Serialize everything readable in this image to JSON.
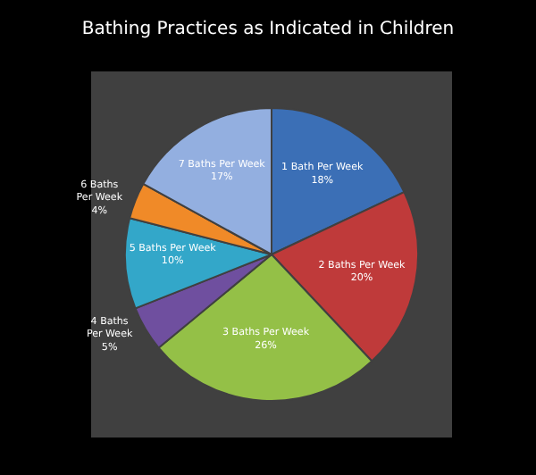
{
  "chart_data": {
    "type": "pie",
    "title": "Bathing Practices as Indicated in Children",
    "categories": [
      "1 Bath Per Week",
      "2 Baths Per Week",
      "3 Baths Per Week",
      "4 Baths Per Week",
      "5 Baths Per Week",
      "6 Baths Per Week",
      "7 Baths Per Week"
    ],
    "values": [
      18,
      20,
      26,
      5,
      10,
      4,
      17
    ],
    "value_labels": [
      "18%",
      "20%",
      "26%",
      "5%",
      "10%",
      "4%",
      "17%"
    ],
    "colors": [
      "#3b6fb6",
      "#bf3a3a",
      "#94c047",
      "#6f4f9f",
      "#33a7c9",
      "#f08a28",
      "#93afe0"
    ]
  }
}
